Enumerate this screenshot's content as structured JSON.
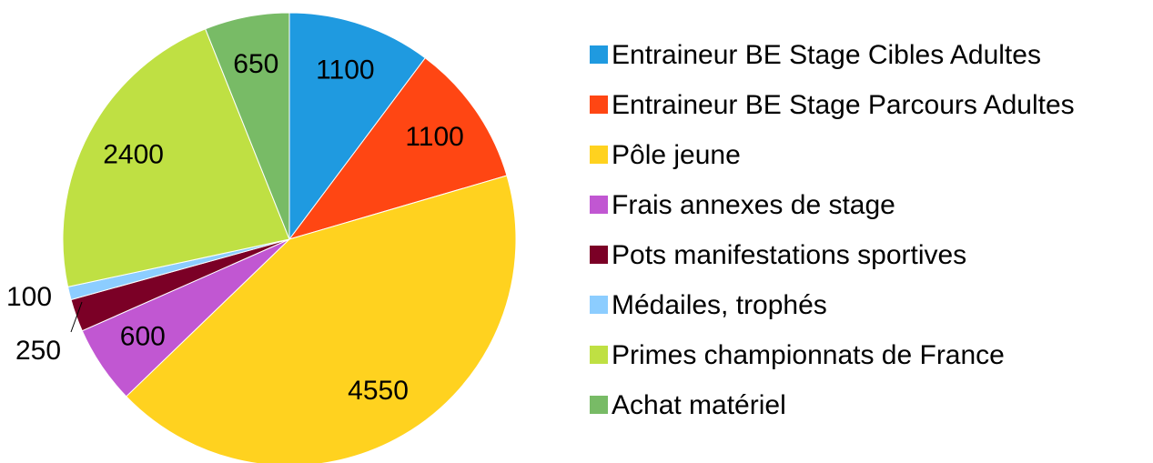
{
  "chart_data": {
    "type": "pie",
    "categories": [
      "Entraineur BE Stage Cibles Adultes",
      "Entraineur BE Stage Parcours Adultes",
      "Pôle jeune",
      "Frais annexes de stage",
      "Pots manifestations sportives",
      "Médailes, trophés",
      "Primes  championnats de France",
      "Achat matériel"
    ],
    "values": [
      1100,
      1100,
      4550,
      600,
      250,
      100,
      2400,
      650
    ],
    "colors": [
      "#1f9ae0",
      "#ff4613",
      "#ffd21f",
      "#c157d2",
      "#7b0026",
      "#8ccdff",
      "#bfe043",
      "#78bb66"
    ],
    "legend": "right"
  }
}
